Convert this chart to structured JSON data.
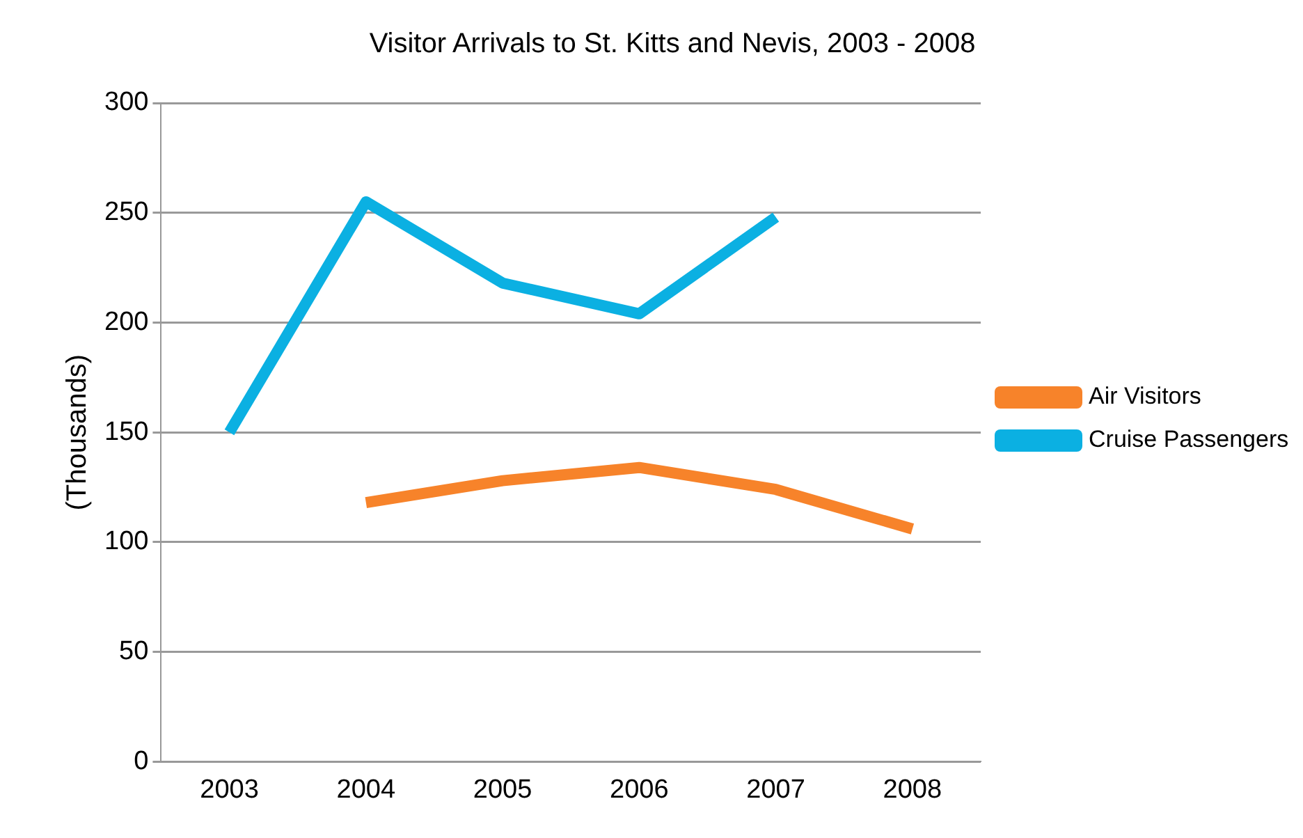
{
  "chart_data": {
    "type": "line",
    "title": "Visitor Arrivals to St. Kitts and Nevis, 2003 - 2008",
    "ylabel": "(Thousands)",
    "categories": [
      "2003",
      "2004",
      "2005",
      "2006",
      "2007",
      "2008"
    ],
    "series": [
      {
        "name": "Air Visitors",
        "color": "#f7832a",
        "values": [
          null,
          118,
          128,
          134,
          124,
          106
        ]
      },
      {
        "name": "Cruise Passengers",
        "color": "#0bb0e2",
        "values": [
          150,
          255,
          218,
          204,
          248,
          null
        ]
      }
    ],
    "ylim": [
      0,
      300
    ],
    "yticks": [
      0,
      50,
      100,
      150,
      200,
      250,
      300
    ],
    "grid": "y",
    "legend": "right",
    "marker": "none",
    "line_style": "solid"
  }
}
